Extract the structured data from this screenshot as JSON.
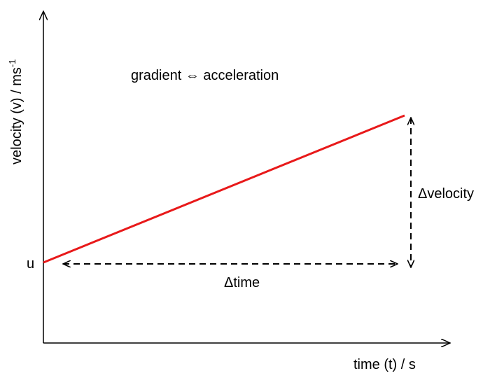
{
  "axes": {
    "y_label": "velocity (v) / ms",
    "y_label_superscript": "-1",
    "x_label": "time (t) / s"
  },
  "annotations": {
    "intercept": "u",
    "gradient": "gradient ⇔ acceleration",
    "delta_y": "Δvelocity",
    "delta_x": "Δtime"
  }
}
